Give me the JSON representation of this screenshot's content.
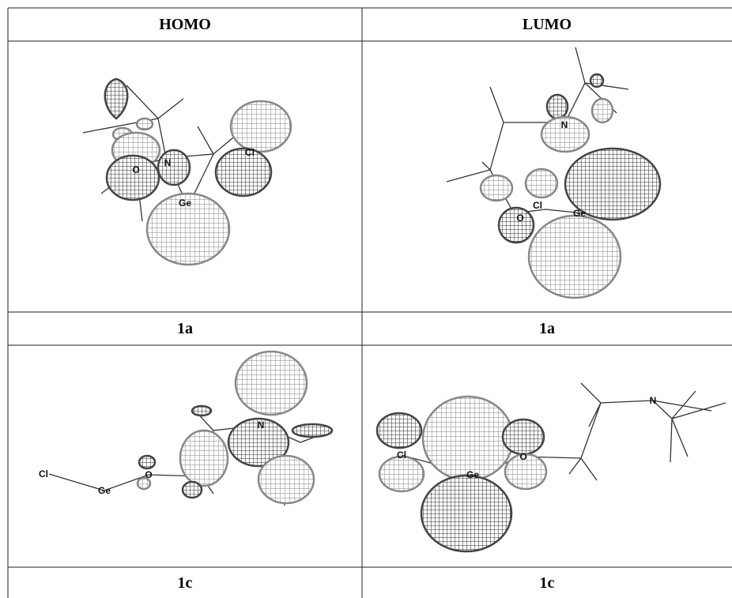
{
  "table": {
    "header": [
      "HOMO",
      "LUMO"
    ],
    "rows": [
      {
        "panels": [
          {
            "atoms": [
              "O",
              "N",
              "Cl",
              "Ge"
            ]
          },
          {
            "atoms": [
              "N",
              "Cl",
              "Ge",
              "O"
            ]
          }
        ],
        "captions": [
          "1a",
          "1a"
        ]
      },
      {
        "panels": [
          {
            "atoms": [
              "Cl",
              "Ge",
              "O",
              "N"
            ]
          },
          {
            "atoms": [
              "Cl",
              "Ge",
              "O",
              "N"
            ]
          }
        ],
        "captions": [
          "1c",
          "1c"
        ]
      }
    ]
  }
}
